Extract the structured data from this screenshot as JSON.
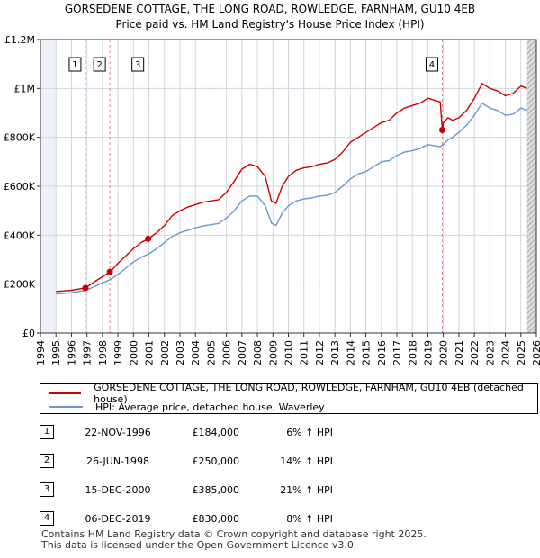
{
  "chart_data": {
    "type": "line",
    "title": "GORSEDENE COTTAGE, THE LONG ROAD, ROWLEDGE, FARNHAM, GU10 4EB",
    "subtitle": "Price paid vs. HM Land Registry's House Price Index (HPI)",
    "xlim": [
      1994,
      2026
    ],
    "ylim": [
      0,
      1200000
    ],
    "x_ticks": [
      1994,
      1995,
      1996,
      1997,
      1998,
      1999,
      2000,
      2001,
      2002,
      2003,
      2004,
      2005,
      2006,
      2007,
      2008,
      2009,
      2010,
      2011,
      2012,
      2013,
      2014,
      2015,
      2016,
      2017,
      2018,
      2019,
      2020,
      2021,
      2022,
      2023,
      2024,
      2025,
      2026
    ],
    "y_ticks": [
      {
        "value": 0,
        "label": "£0"
      },
      {
        "value": 200000,
        "label": "£200K"
      },
      {
        "value": 400000,
        "label": "£400K"
      },
      {
        "value": 600000,
        "label": "£600K"
      },
      {
        "value": 800000,
        "label": "£800K"
      },
      {
        "value": 1000000,
        "label": "£1M"
      },
      {
        "value": 1200000,
        "label": "£1.2M"
      }
    ],
    "data_start": 1995,
    "data_end": 2025.4,
    "series": [
      {
        "name": "GORSEDENE COTTAGE, THE LONG ROAD, ROWLEDGE, FARNHAM, GU10 4EB (detached house)",
        "color": "#cc0000",
        "x": [
          1995.0,
          1995.5,
          1996.0,
          1996.5,
          1996.9,
          1997.5,
          1998.0,
          1998.5,
          1999.0,
          1999.5,
          2000.0,
          2000.5,
          2000.95,
          2001.5,
          2002.0,
          2002.5,
          2003.0,
          2003.5,
          2004.0,
          2004.5,
          2005.0,
          2005.5,
          2006.0,
          2006.5,
          2007.0,
          2007.5,
          2008.0,
          2008.5,
          2008.9,
          2009.2,
          2009.6,
          2010.0,
          2010.5,
          2011.0,
          2011.5,
          2012.0,
          2012.5,
          2013.0,
          2013.5,
          2014.0,
          2014.5,
          2015.0,
          2015.5,
          2016.0,
          2016.5,
          2017.0,
          2017.5,
          2018.0,
          2018.5,
          2019.0,
          2019.5,
          2019.8,
          2019.93,
          2020.0,
          2020.3,
          2020.6,
          2021.0,
          2021.5,
          2022.0,
          2022.5,
          2023.0,
          2023.5,
          2024.0,
          2024.5,
          2025.0,
          2025.4
        ],
        "y": [
          170000,
          172000,
          175000,
          180000,
          184000,
          210000,
          230000,
          250000,
          285000,
          315000,
          345000,
          370000,
          385000,
          410000,
          440000,
          480000,
          500000,
          515000,
          525000,
          535000,
          540000,
          545000,
          575000,
          620000,
          670000,
          690000,
          680000,
          640000,
          540000,
          530000,
          600000,
          640000,
          665000,
          675000,
          680000,
          690000,
          695000,
          710000,
          740000,
          780000,
          800000,
          820000,
          840000,
          860000,
          870000,
          900000,
          920000,
          930000,
          940000,
          960000,
          950000,
          945000,
          830000,
          860000,
          880000,
          870000,
          880000,
          910000,
          960000,
          1020000,
          1000000,
          990000,
          970000,
          980000,
          1010000,
          1000000
        ]
      },
      {
        "name": "HPI: Average price, detached house, Waverley",
        "color": "#6699cc",
        "x": [
          1995.0,
          1995.5,
          1996.0,
          1996.5,
          1996.9,
          1997.5,
          1998.0,
          1998.5,
          1999.0,
          1999.5,
          2000.0,
          2000.5,
          2000.95,
          2001.5,
          2002.0,
          2002.5,
          2003.0,
          2003.5,
          2004.0,
          2004.5,
          2005.0,
          2005.5,
          2006.0,
          2006.5,
          2007.0,
          2007.5,
          2008.0,
          2008.5,
          2008.9,
          2009.2,
          2009.6,
          2010.0,
          2010.5,
          2011.0,
          2011.5,
          2012.0,
          2012.5,
          2013.0,
          2013.5,
          2014.0,
          2014.5,
          2015.0,
          2015.5,
          2016.0,
          2016.5,
          2017.0,
          2017.5,
          2018.0,
          2018.5,
          2019.0,
          2019.5,
          2019.8,
          2019.93,
          2020.0,
          2020.3,
          2020.6,
          2021.0,
          2021.5,
          2022.0,
          2022.5,
          2023.0,
          2023.5,
          2024.0,
          2024.5,
          2025.0,
          2025.4
        ],
        "y": [
          160000,
          162000,
          165000,
          170000,
          174000,
          190000,
          205000,
          218000,
          240000,
          265000,
          290000,
          310000,
          322000,
          345000,
          370000,
          395000,
          410000,
          420000,
          430000,
          438000,
          443000,
          448000,
          470000,
          500000,
          540000,
          560000,
          560000,
          520000,
          450000,
          440000,
          490000,
          520000,
          540000,
          548000,
          552000,
          560000,
          563000,
          575000,
          600000,
          630000,
          650000,
          660000,
          680000,
          700000,
          705000,
          725000,
          740000,
          745000,
          755000,
          770000,
          765000,
          762000,
          768000,
          770000,
          790000,
          800000,
          820000,
          850000,
          890000,
          940000,
          920000,
          910000,
          890000,
          895000,
          920000,
          910000
        ]
      }
    ],
    "sales": [
      {
        "num": "1",
        "x": 1996.9,
        "price": 184000,
        "date": "22-NOV-1996",
        "price_label": "£184,000",
        "hpi_label": "6% ↑ HPI"
      },
      {
        "num": "2",
        "x": 1998.48,
        "price": 250000,
        "date": "26-JUN-1998",
        "price_label": "£250,000",
        "hpi_label": "14% ↑ HPI"
      },
      {
        "num": "3",
        "x": 2000.95,
        "price": 385000,
        "date": "15-DEC-2000",
        "price_label": "£385,000",
        "hpi_label": "21% ↑ HPI"
      },
      {
        "num": "4",
        "x": 2019.93,
        "price": 830000,
        "date": "06-DEC-2019",
        "price_label": "£830,000",
        "hpi_label": "8% ↑ HPI"
      }
    ]
  },
  "footer": {
    "line1": "Contains HM Land Registry data © Crown copyright and database right 2025.",
    "line2": "This data is licensed under the Open Government Licence v3.0."
  }
}
